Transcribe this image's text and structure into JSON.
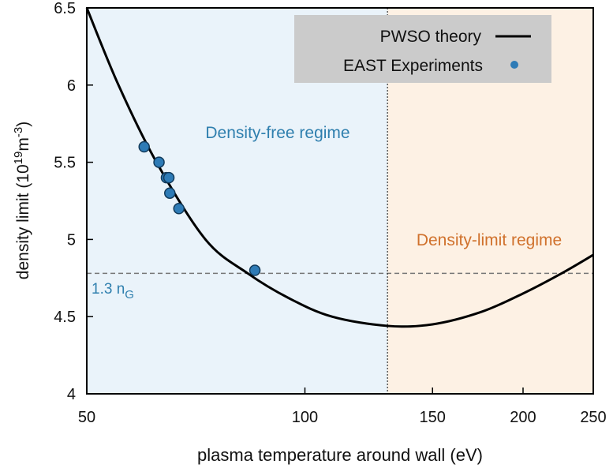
{
  "chart_data": {
    "type": "line",
    "xlabel": "plasma temperature around wall (eV)",
    "ylabel_main": "density limit (10",
    "ylabel_exp": "19",
    "ylabel_unit": "m",
    "ylabel_unit_exp": "-3",
    "ylabel_close": ")",
    "x_scale": "log",
    "xlim": [
      50,
      250
    ],
    "ylim": [
      4,
      6.5
    ],
    "x_ticks": [
      50,
      100,
      150,
      200,
      250
    ],
    "x_tick_labels": [
      "50",
      "100",
      "150",
      "200",
      "250"
    ],
    "y_ticks": [
      4,
      4.5,
      5,
      5.5,
      6,
      6.5
    ],
    "y_tick_labels": [
      "4",
      "4.5",
      "5",
      "5.5",
      "6",
      "6.5"
    ],
    "grid": false,
    "legend_position": "top-right",
    "series": [
      {
        "name": "PWSO theory",
        "kind": "line",
        "color": "#000000",
        "x": [
          50,
          55.3,
          62.4,
          72.9,
          83.4,
          95,
          109,
          130,
          150,
          175,
          200,
          226,
          250
        ],
        "y": [
          6.5,
          6.0,
          5.5,
          5.0,
          4.78,
          4.62,
          4.5,
          4.44,
          4.45,
          4.53,
          4.65,
          4.78,
          4.9
        ]
      },
      {
        "name": "EAST Experiments",
        "kind": "scatter",
        "color": "#2e7bb6",
        "x": [
          60,
          62.9,
          64.4,
          64.9,
          65.1,
          67,
          85.3
        ],
        "y": [
          5.6,
          5.5,
          5.4,
          5.4,
          5.3,
          5.2,
          4.8
        ]
      }
    ],
    "reference_lines": {
      "vertical_x": 130,
      "horizontal_y": 4.78,
      "horizontal_label_main": "1.3 n",
      "horizontal_label_sub": "G"
    },
    "regions": [
      {
        "label": "Density-free regime",
        "color": "#eaf3fa",
        "text_color": "#2f7fae"
      },
      {
        "label": "Density-limit regime",
        "color": "#fdf1e4",
        "text_color": "#d0712c"
      }
    ]
  }
}
